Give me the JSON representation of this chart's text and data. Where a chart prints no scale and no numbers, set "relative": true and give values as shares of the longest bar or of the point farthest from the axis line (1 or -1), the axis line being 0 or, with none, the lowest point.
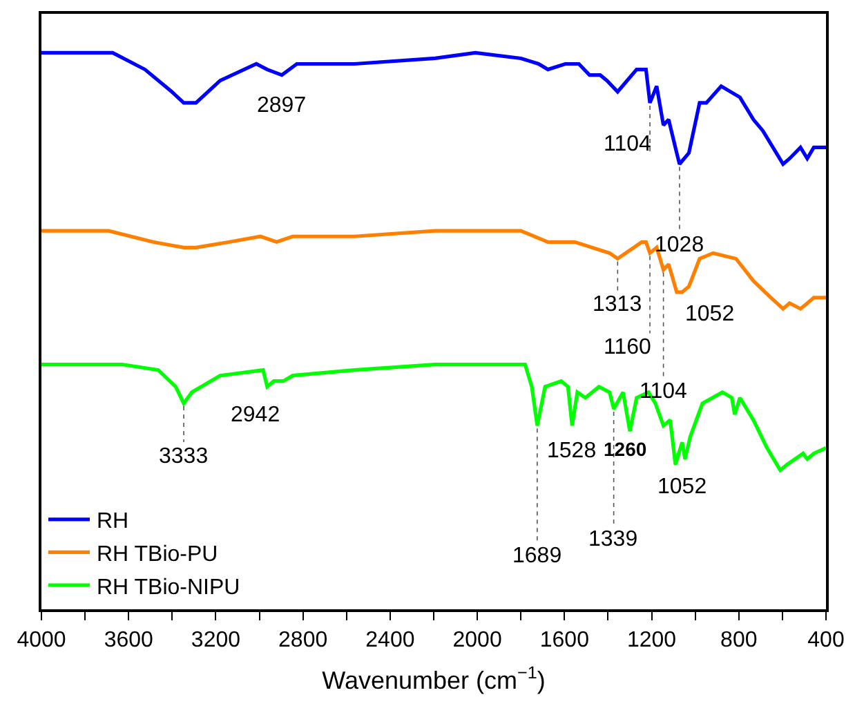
{
  "chart_data": {
    "type": "line",
    "relative": true,
    "xlabel": "Wavenumber (cm$^{−1}$)",
    "xlim": [
      4000,
      400
    ],
    "xticks": [
      4000,
      {
        "value": 3800,
        "label": null
      },
      3600,
      {
        "value": 3400,
        "label": null
      },
      3200,
      {
        "value": 3000,
        "label": null
      },
      2800,
      {
        "value": 2600,
        "label": null
      },
      2400,
      {
        "value": 2200,
        "label": null
      },
      2000,
      {
        "value": 1800,
        "label": null
      },
      1600,
      {
        "value": 1400,
        "label": null
      },
      1200,
      {
        "value": 1000,
        "label": null
      },
      800,
      {
        "value": 600,
        "label": null
      },
      400
    ],
    "legend": "bottom left",
    "marker": "none",
    "line_style": "solid",
    "series": [
      {
        "name": "RH",
        "color": "#0000ff",
        "x": [
          4000,
          3673,
          3525,
          3402,
          3347,
          3291,
          3180,
          3014,
          2964,
          2897,
          2828,
          2564,
          2194,
          2009,
          1800,
          1719,
          1676,
          1596,
          1534,
          1485,
          1436,
          1405,
          1356,
          1269,
          1226,
          1208,
          1177,
          1146,
          1122,
          1085,
          1072,
          1029,
          980,
          949,
          881,
          795,
          733,
          690,
          628,
          597,
          567,
          517,
          486,
          456,
          400
        ],
        "values": [
          1.0,
          1.0,
          0.97,
          0.93,
          0.91,
          0.91,
          0.95,
          0.98,
          0.97,
          0.96,
          0.98,
          0.98,
          0.99,
          1.0,
          0.99,
          0.98,
          0.97,
          0.98,
          0.98,
          0.96,
          0.96,
          0.95,
          0.93,
          0.97,
          0.97,
          0.91,
          0.94,
          0.87,
          0.88,
          0.82,
          0.8,
          0.82,
          0.91,
          0.91,
          0.94,
          0.92,
          0.88,
          0.86,
          0.82,
          0.8,
          0.81,
          0.83,
          0.81,
          0.83,
          0.83
        ]
      },
      {
        "name": "RH TBio-PU",
        "color": "#ff8000",
        "x": [
          4000,
          3692,
          3488,
          3347,
          3291,
          3137,
          2995,
          2921,
          2847,
          2564,
          2194,
          1800,
          1676,
          1553,
          1393,
          1356,
          1245,
          1226,
          1208,
          1177,
          1146,
          1122,
          1085,
          1060,
          1029,
          980,
          918,
          813,
          733,
          653,
          597,
          567,
          517,
          486,
          456,
          400
        ],
        "values": [
          0.68,
          0.68,
          0.66,
          0.65,
          0.65,
          0.66,
          0.67,
          0.66,
          0.67,
          0.67,
          0.68,
          0.68,
          0.66,
          0.66,
          0.64,
          0.63,
          0.66,
          0.66,
          0.64,
          0.65,
          0.61,
          0.62,
          0.57,
          0.57,
          0.58,
          0.63,
          0.64,
          0.63,
          0.59,
          0.56,
          0.54,
          0.55,
          0.54,
          0.55,
          0.56,
          0.56
        ]
      },
      {
        "name": "RH TBio-NIPU",
        "color": "#00ff00",
        "x": [
          4000,
          3630,
          3464,
          3384,
          3347,
          3310,
          3180,
          2983,
          2964,
          2934,
          2890,
          2847,
          2564,
          2194,
          1781,
          1750,
          1725,
          1689,
          1615,
          1584,
          1565,
          1541,
          1504,
          1442,
          1393,
          1374,
          1331,
          1300,
          1269,
          1214,
          1183,
          1146,
          1115,
          1091,
          1060,
          1047,
          1023,
          967,
          875,
          832,
          819,
          795,
          733,
          671,
          610,
          579,
          505,
          486,
          456,
          400
        ],
        "values": [
          0.44,
          0.44,
          0.43,
          0.4,
          0.37,
          0.39,
          0.42,
          0.43,
          0.4,
          0.41,
          0.41,
          0.42,
          0.43,
          0.44,
          0.44,
          0.4,
          0.33,
          0.4,
          0.41,
          0.4,
          0.33,
          0.39,
          0.38,
          0.4,
          0.39,
          0.36,
          0.39,
          0.32,
          0.38,
          0.39,
          0.37,
          0.33,
          0.34,
          0.26,
          0.3,
          0.27,
          0.31,
          0.37,
          0.39,
          0.38,
          0.35,
          0.38,
          0.34,
          0.29,
          0.25,
          0.26,
          0.28,
          0.27,
          0.28,
          0.29
        ]
      }
    ],
    "annotations": [
      {
        "text": "2897",
        "x": 2897,
        "y": 0.96
      },
      {
        "text": "3333",
        "x": 3347,
        "y": 0.37
      },
      {
        "text": "2942",
        "x": 2964,
        "y": 0.4
      },
      {
        "text": "1104",
        "x": 1208,
        "y": 0.91
      },
      {
        "text": "1028",
        "x": 1072,
        "y": 0.8
      },
      {
        "text": "1313",
        "x": 1356,
        "y": 0.63
      },
      {
        "text": "1160",
        "x": 1208,
        "y": 0.64
      },
      {
        "text": "1104",
        "x": 1146,
        "y": 0.61
      },
      {
        "text": "1052",
        "x": 1085,
        "y": 0.57
      },
      {
        "text": "1689",
        "x": 1725,
        "y": 0.33
      },
      {
        "text": "1528",
        "x": 1565,
        "y": 0.33
      },
      {
        "text": "1260",
        "x": 1300,
        "y": 0.32
      },
      {
        "text": "1339",
        "x": 1374,
        "y": 0.36
      },
      {
        "text": "1052",
        "x": 1091,
        "y": 0.26
      }
    ]
  }
}
